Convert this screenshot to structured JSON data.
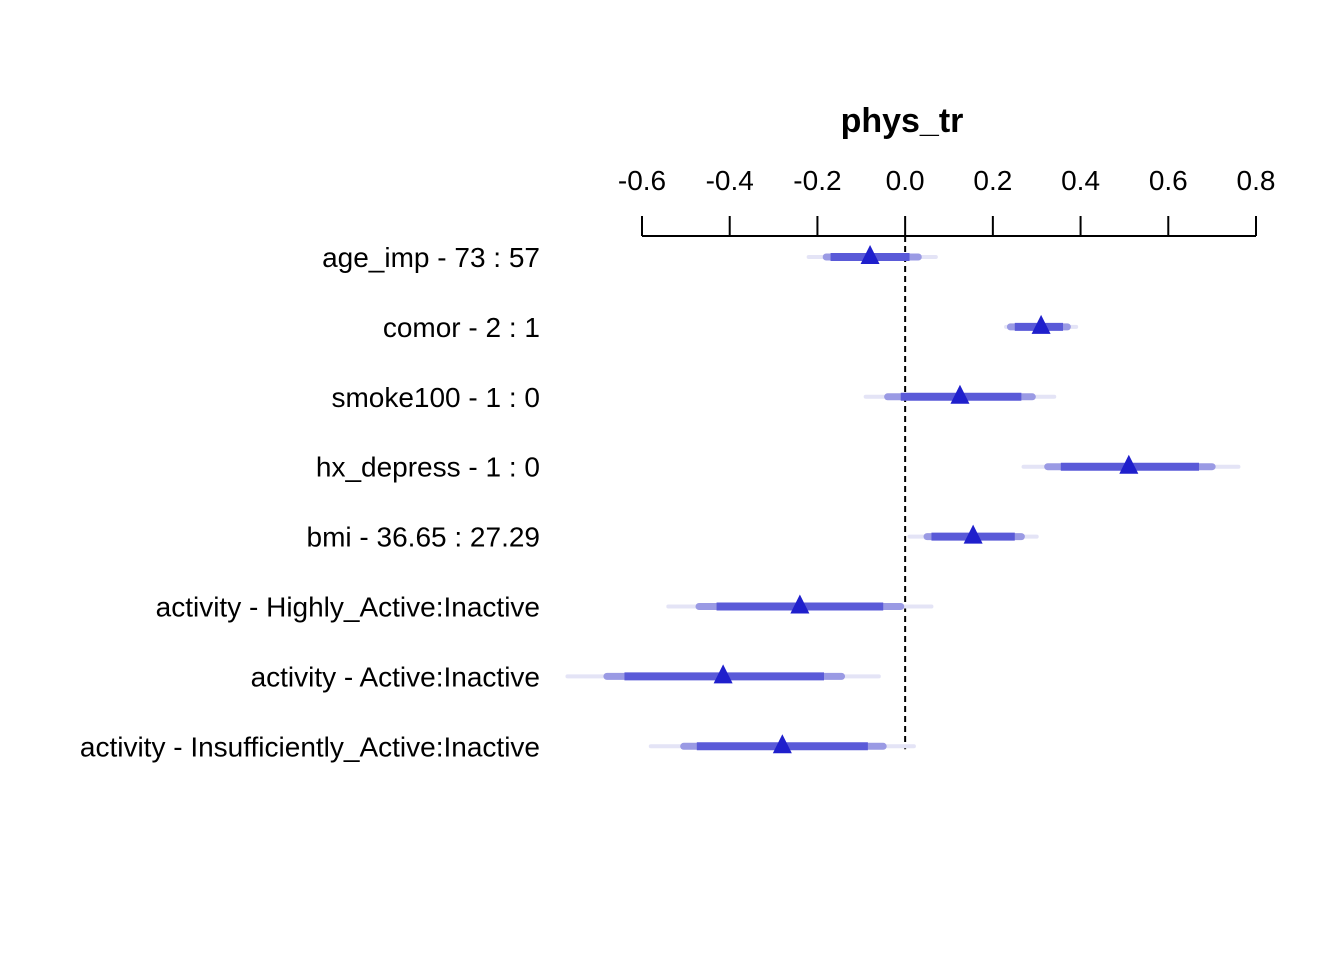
{
  "chart_data": {
    "type": "forest",
    "title": "phys_tr",
    "xlim": [
      -0.6,
      0.8
    ],
    "xticks": [
      -0.6,
      -0.4,
      -0.2,
      0.0,
      0.2,
      0.4,
      0.6,
      0.8
    ],
    "xtick_labels": [
      "-0.6",
      "-0.4",
      "-0.2",
      "0.0",
      "0.2",
      "0.4",
      "0.6",
      "0.8"
    ],
    "reference_line": 0,
    "colors": {
      "point": "#1f1fcc",
      "interval_inner": "#5a5ad8",
      "interval_mid": "#9a9ae4",
      "interval_outer": "#e4e4f6",
      "axis": "#000000"
    },
    "rows": [
      {
        "label": "age_imp - 73 : 57",
        "estimate": -0.08,
        "ci50": [
          -0.17,
          0.01
        ],
        "ci90": [
          -0.18,
          0.03
        ],
        "ci99": [
          -0.22,
          0.07
        ]
      },
      {
        "label": "comor - 2 : 1",
        "estimate": 0.31,
        "ci50": [
          0.25,
          0.36
        ],
        "ci90": [
          0.24,
          0.37
        ],
        "ci99": [
          0.23,
          0.39
        ]
      },
      {
        "label": "smoke100 - 1 : 0",
        "estimate": 0.125,
        "ci50": [
          -0.01,
          0.265
        ],
        "ci90": [
          -0.04,
          0.29
        ],
        "ci99": [
          -0.09,
          0.34
        ]
      },
      {
        "label": "hx_depress - 1 : 0",
        "estimate": 0.51,
        "ci50": [
          0.355,
          0.67
        ],
        "ci90": [
          0.325,
          0.7
        ],
        "ci99": [
          0.27,
          0.76
        ]
      },
      {
        "label": "bmi - 36.65 : 27.29",
        "estimate": 0.155,
        "ci50": [
          0.06,
          0.25
        ],
        "ci90": [
          0.05,
          0.265
        ],
        "ci99": [
          0.01,
          0.3
        ]
      },
      {
        "label": "activity - Highly_Active:Inactive",
        "estimate": -0.24,
        "ci50": [
          -0.43,
          -0.05
        ],
        "ci90": [
          -0.47,
          -0.01
        ],
        "ci99": [
          -0.54,
          0.06
        ]
      },
      {
        "label": "activity - Active:Inactive",
        "estimate": -0.415,
        "ci50": [
          -0.64,
          -0.185
        ],
        "ci90": [
          -0.68,
          -0.145
        ],
        "ci99": [
          -0.77,
          -0.06
        ]
      },
      {
        "label": "activity - Insufficiently_Active:Inactive",
        "estimate": -0.28,
        "ci50": [
          -0.475,
          -0.085
        ],
        "ci90": [
          -0.505,
          -0.05
        ],
        "ci99": [
          -0.58,
          0.02
        ]
      }
    ]
  }
}
